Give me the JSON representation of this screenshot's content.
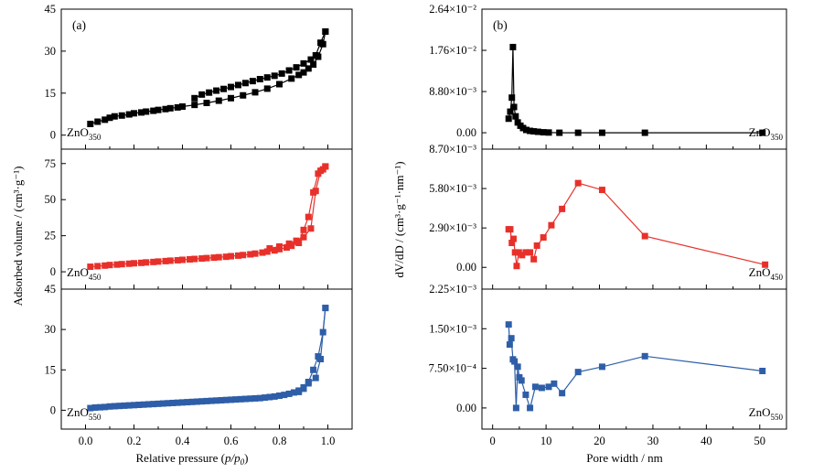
{
  "left_figure": {
    "xlabel": "Relative pressure",
    "xlabel_var": "p/p",
    "xlabel_sub": "0",
    "ylabel": "Adsorbed volume / (cm³·g⁻¹)",
    "x_ticks": [
      "0.0",
      "0.2",
      "0.4",
      "0.6",
      "0.8",
      "1.0"
    ]
  },
  "right_figure": {
    "xlabel": "Pore width / nm",
    "ylabel": "dV/dD / (cm³·g⁻¹·nm⁻¹)",
    "x_ticks": [
      "0",
      "10",
      "20",
      "30",
      "40",
      "50"
    ]
  },
  "chart_data": [
    {
      "type": "line",
      "panel": "(a)",
      "sample": "ZnO350",
      "xlim": [
        -0.1,
        1.1
      ],
      "ylim": [
        -5,
        45
      ],
      "yticks": [
        "0",
        "15",
        "30",
        "45"
      ],
      "color": "#000000",
      "marker": "square",
      "series": [
        {
          "values": [
            [
              0.02,
              4.0
            ],
            [
              0.05,
              4.8
            ],
            [
              0.08,
              5.5
            ],
            [
              0.1,
              6.2
            ],
            [
              0.12,
              6.7
            ],
            [
              0.15,
              7.0
            ],
            [
              0.18,
              7.4
            ],
            [
              0.2,
              7.8
            ],
            [
              0.23,
              8.1
            ],
            [
              0.25,
              8.4
            ],
            [
              0.28,
              8.7
            ],
            [
              0.3,
              9.0
            ],
            [
              0.33,
              9.3
            ],
            [
              0.35,
              9.6
            ],
            [
              0.38,
              9.9
            ],
            [
              0.4,
              10.2
            ],
            [
              0.45,
              10.8
            ],
            [
              0.5,
              11.5
            ],
            [
              0.55,
              12.3
            ],
            [
              0.6,
              13.2
            ],
            [
              0.65,
              14.2
            ],
            [
              0.7,
              15.3
            ],
            [
              0.75,
              16.6
            ],
            [
              0.8,
              18.2
            ],
            [
              0.85,
              20.2
            ],
            [
              0.88,
              21.5
            ],
            [
              0.9,
              22.4
            ],
            [
              0.92,
              23.8
            ],
            [
              0.94,
              25.2
            ],
            [
              0.96,
              28.0
            ],
            [
              0.98,
              32.5
            ],
            [
              0.99,
              37.0
            ]
          ]
        },
        {
          "values": [
            [
              0.99,
              37.0
            ],
            [
              0.97,
              33.0
            ],
            [
              0.95,
              28.5
            ],
            [
              0.93,
              27.0
            ],
            [
              0.9,
              25.6
            ],
            [
              0.87,
              24.2
            ],
            [
              0.84,
              23.1
            ],
            [
              0.81,
              22.0
            ],
            [
              0.78,
              21.2
            ],
            [
              0.75,
              20.6
            ],
            [
              0.72,
              20.0
            ],
            [
              0.69,
              19.3
            ],
            [
              0.66,
              18.6
            ],
            [
              0.63,
              17.9
            ],
            [
              0.6,
              17.2
            ],
            [
              0.57,
              16.5
            ],
            [
              0.54,
              15.9
            ],
            [
              0.51,
              15.2
            ],
            [
              0.48,
              14.5
            ],
            [
              0.45,
              13.2
            ]
          ]
        }
      ]
    },
    {
      "type": "line",
      "panel": "",
      "sample": "ZnO450",
      "xlim": [
        -0.1,
        1.1
      ],
      "ylim": [
        -12,
        85
      ],
      "yticks": [
        "0",
        "25",
        "50",
        "75"
      ],
      "color": "#e8302a",
      "marker": "square",
      "series": [
        {
          "values": [
            [
              0.02,
              3.5
            ],
            [
              0.05,
              3.9
            ],
            [
              0.08,
              4.3
            ],
            [
              0.1,
              4.7
            ],
            [
              0.13,
              5.0
            ],
            [
              0.15,
              5.3
            ],
            [
              0.18,
              5.6
            ],
            [
              0.2,
              5.9
            ],
            [
              0.23,
              6.2
            ],
            [
              0.25,
              6.5
            ],
            [
              0.28,
              6.8
            ],
            [
              0.3,
              7.1
            ],
            [
              0.33,
              7.4
            ],
            [
              0.35,
              7.7
            ],
            [
              0.38,
              8.0
            ],
            [
              0.4,
              8.3
            ],
            [
              0.43,
              8.6
            ],
            [
              0.45,
              8.9
            ],
            [
              0.48,
              9.2
            ],
            [
              0.5,
              9.5
            ],
            [
              0.53,
              9.8
            ],
            [
              0.55,
              10.1
            ],
            [
              0.58,
              10.4
            ],
            [
              0.6,
              10.8
            ],
            [
              0.63,
              11.2
            ],
            [
              0.65,
              11.6
            ],
            [
              0.68,
              12.1
            ],
            [
              0.7,
              12.6
            ],
            [
              0.73,
              13.3
            ],
            [
              0.75,
              14.0
            ],
            [
              0.78,
              14.8
            ],
            [
              0.8,
              15.7
            ],
            [
              0.83,
              16.8
            ],
            [
              0.85,
              18.0
            ],
            [
              0.88,
              20.0
            ],
            [
              0.9,
              29.0
            ],
            [
              0.92,
              38.0
            ],
            [
              0.94,
              55.0
            ],
            [
              0.96,
              68.0
            ],
            [
              0.98,
              71.0
            ],
            [
              0.99,
              73.0
            ]
          ]
        },
        {
          "values": [
            [
              0.99,
              73.0
            ],
            [
              0.97,
              70.0
            ],
            [
              0.95,
              56.0
            ],
            [
              0.93,
              30.0
            ],
            [
              0.9,
              24.0
            ],
            [
              0.87,
              21.5
            ],
            [
              0.84,
              19.5
            ],
            [
              0.8,
              17.5
            ],
            [
              0.76,
              16.2
            ]
          ]
        }
      ]
    },
    {
      "type": "line",
      "panel": "",
      "sample": "ZnO550",
      "xlim": [
        -0.1,
        1.1
      ],
      "ylim": [
        -7,
        45
      ],
      "yticks": [
        "0",
        "15",
        "30",
        "45"
      ],
      "color": "#2e5ea8",
      "marker": "square",
      "series": [
        {
          "values": [
            [
              0.02,
              0.8
            ],
            [
              0.04,
              1.0
            ],
            [
              0.06,
              1.1
            ],
            [
              0.08,
              1.2
            ],
            [
              0.1,
              1.4
            ],
            [
              0.12,
              1.5
            ],
            [
              0.14,
              1.6
            ],
            [
              0.16,
              1.7
            ],
            [
              0.18,
              1.8
            ],
            [
              0.2,
              1.9
            ],
            [
              0.22,
              2.0
            ],
            [
              0.24,
              2.1
            ],
            [
              0.26,
              2.2
            ],
            [
              0.28,
              2.3
            ],
            [
              0.3,
              2.4
            ],
            [
              0.32,
              2.5
            ],
            [
              0.34,
              2.6
            ],
            [
              0.36,
              2.7
            ],
            [
              0.38,
              2.8
            ],
            [
              0.4,
              2.9
            ],
            [
              0.42,
              3.0
            ],
            [
              0.44,
              3.1
            ],
            [
              0.46,
              3.2
            ],
            [
              0.48,
              3.3
            ],
            [
              0.5,
              3.4
            ],
            [
              0.52,
              3.5
            ],
            [
              0.54,
              3.6
            ],
            [
              0.56,
              3.7
            ],
            [
              0.58,
              3.8
            ],
            [
              0.6,
              3.9
            ],
            [
              0.62,
              4.0
            ],
            [
              0.64,
              4.1
            ],
            [
              0.66,
              4.2
            ],
            [
              0.68,
              4.3
            ],
            [
              0.7,
              4.4
            ],
            [
              0.72,
              4.5
            ],
            [
              0.74,
              4.7
            ],
            [
              0.76,
              4.9
            ],
            [
              0.78,
              5.1
            ],
            [
              0.8,
              5.4
            ],
            [
              0.82,
              5.7
            ],
            [
              0.84,
              6.1
            ],
            [
              0.86,
              6.6
            ],
            [
              0.88,
              7.3
            ],
            [
              0.9,
              8.5
            ],
            [
              0.92,
              10.5
            ],
            [
              0.94,
              15.0
            ],
            [
              0.96,
              20.0
            ],
            [
              0.98,
              29.0
            ],
            [
              0.99,
              38.0
            ]
          ]
        },
        {
          "values": [
            [
              0.99,
              38.0
            ],
            [
              0.97,
              19.0
            ],
            [
              0.95,
              12.0
            ],
            [
              0.92,
              10.0
            ],
            [
              0.9,
              8.0
            ],
            [
              0.88,
              6.8
            ]
          ]
        }
      ]
    },
    {
      "type": "line",
      "panel": "(b)",
      "sample": "ZnO350",
      "xlim": [
        -2,
        55
      ],
      "ylim": [
        -0.0035,
        0.0264
      ],
      "yticks": [
        "0.00",
        "8.80×10⁻³",
        "1.76×10⁻²",
        "2.64×10⁻²"
      ],
      "color": "#000000",
      "marker": "square",
      "series": [
        {
          "values": [
            [
              3.0,
              0.003
            ],
            [
              3.3,
              0.0045
            ],
            [
              3.6,
              0.0075
            ],
            [
              3.8,
              0.0183
            ],
            [
              4.0,
              0.0055
            ],
            [
              4.3,
              0.0035
            ],
            [
              4.7,
              0.0022
            ],
            [
              5.2,
              0.0015
            ],
            [
              5.7,
              0.001
            ],
            [
              6.3,
              0.0006
            ],
            [
              7.0,
              0.0004
            ],
            [
              7.7,
              0.0003
            ],
            [
              8.5,
              0.0002
            ],
            [
              9.5,
              0.0001
            ],
            [
              10.5,
              5e-05
            ],
            [
              12.5,
              0.0
            ],
            [
              16.0,
              0.0
            ],
            [
              20.5,
              0.0
            ],
            [
              28.5,
              0.0
            ],
            [
              50.5,
              0.0
            ]
          ]
        }
      ]
    },
    {
      "type": "line",
      "panel": "",
      "sample": "ZnO450",
      "xlim": [
        -2,
        55
      ],
      "ylim": [
        -0.0016,
        0.0087
      ],
      "yticks": [
        "0.00",
        "2.90×10⁻³",
        "5.80×10⁻³",
        "8.70×10⁻³"
      ],
      "color": "#e8302a",
      "marker": "square",
      "series": [
        {
          "values": [
            [
              3.0,
              0.0028
            ],
            [
              3.3,
              0.0028
            ],
            [
              3.6,
              0.0018
            ],
            [
              3.9,
              0.0021
            ],
            [
              4.2,
              0.0011
            ],
            [
              4.5,
              0.0001
            ],
            [
              4.9,
              0.0011
            ],
            [
              5.5,
              0.0009
            ],
            [
              6.2,
              0.0011
            ],
            [
              7.0,
              0.0011
            ],
            [
              7.7,
              0.0006
            ],
            [
              8.3,
              0.0016
            ],
            [
              9.5,
              0.0022
            ],
            [
              11.0,
              0.0031
            ],
            [
              13.0,
              0.0043
            ],
            [
              16.0,
              0.0062
            ],
            [
              20.5,
              0.0057
            ],
            [
              28.5,
              0.0023
            ],
            [
              51.0,
              0.0002
            ]
          ]
        }
      ]
    },
    {
      "type": "line",
      "panel": "",
      "sample": "ZnO550",
      "xlim": [
        -2,
        55
      ],
      "ylim": [
        -0.0004,
        0.00225
      ],
      "yticks": [
        "0.00",
        "7.50×10⁻⁴",
        "1.50×10⁻³",
        "2.25×10⁻³"
      ],
      "color": "#2e5ea8",
      "marker": "square",
      "series": [
        {
          "values": [
            [
              3.0,
              0.00158
            ],
            [
              3.2,
              0.0012
            ],
            [
              3.5,
              0.00132
            ],
            [
              3.8,
              0.00092
            ],
            [
              4.1,
              0.00088
            ],
            [
              4.4,
              0.0
            ],
            [
              4.7,
              0.00078
            ],
            [
              5.0,
              0.00058
            ],
            [
              5.4,
              0.00052
            ],
            [
              6.2,
              0.00025
            ],
            [
              7.0,
              0.0
            ],
            [
              8.0,
              0.0004
            ],
            [
              9.2,
              0.00038
            ],
            [
              10.5,
              0.0004
            ],
            [
              11.5,
              0.00046
            ],
            [
              13.0,
              0.00028
            ],
            [
              16.0,
              0.00068
            ],
            [
              20.5,
              0.00078
            ],
            [
              28.5,
              0.00098
            ],
            [
              50.5,
              0.0007
            ]
          ]
        }
      ]
    }
  ]
}
